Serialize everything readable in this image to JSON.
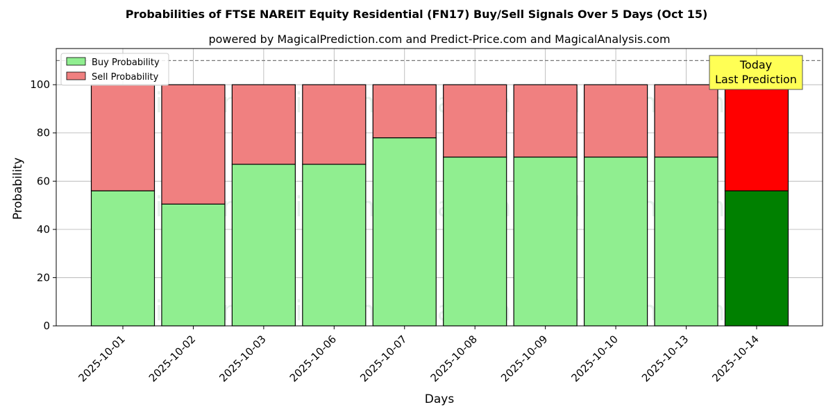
{
  "title": "Probabilities of FTSE NAREIT Equity Residential (FN17) Buy/Sell Signals Over 5 Days (Oct 15)",
  "subtitle": "powered by MagicalPrediction.com and Predict-Price.com and MagicalAnalysis.com",
  "watermarks": [
    "MagicalAnalysis.com",
    "MagicalPrediction.com"
  ],
  "annotation": {
    "line1": "Today",
    "line2": "Last Prediction"
  },
  "colors": {
    "buy": "#90ee90",
    "sell": "#f08080",
    "buy_last": "#008000",
    "sell_last": "#ff0000",
    "annotation_bg": "#ffff55"
  },
  "chart_data": {
    "type": "bar",
    "stacked": true,
    "xlabel": "Days",
    "ylabel": "Probability",
    "categories": [
      "2025-10-01",
      "2025-10-02",
      "2025-10-03",
      "2025-10-06",
      "2025-10-07",
      "2025-10-08",
      "2025-10-09",
      "2025-10-10",
      "2025-10-13",
      "2025-10-14"
    ],
    "series": [
      {
        "name": "Buy Probability",
        "values": [
          56,
          50.5,
          67,
          67,
          78,
          70,
          70,
          70,
          70,
          56
        ]
      },
      {
        "name": "Sell Probability",
        "values": [
          44,
          49.5,
          33,
          33,
          22,
          30,
          30,
          30,
          30,
          44
        ]
      }
    ],
    "ylim": [
      0,
      115
    ],
    "yticks": [
      0,
      20,
      40,
      60,
      80,
      100
    ],
    "reference_line": 110,
    "grid": true,
    "legend": "top-left"
  }
}
